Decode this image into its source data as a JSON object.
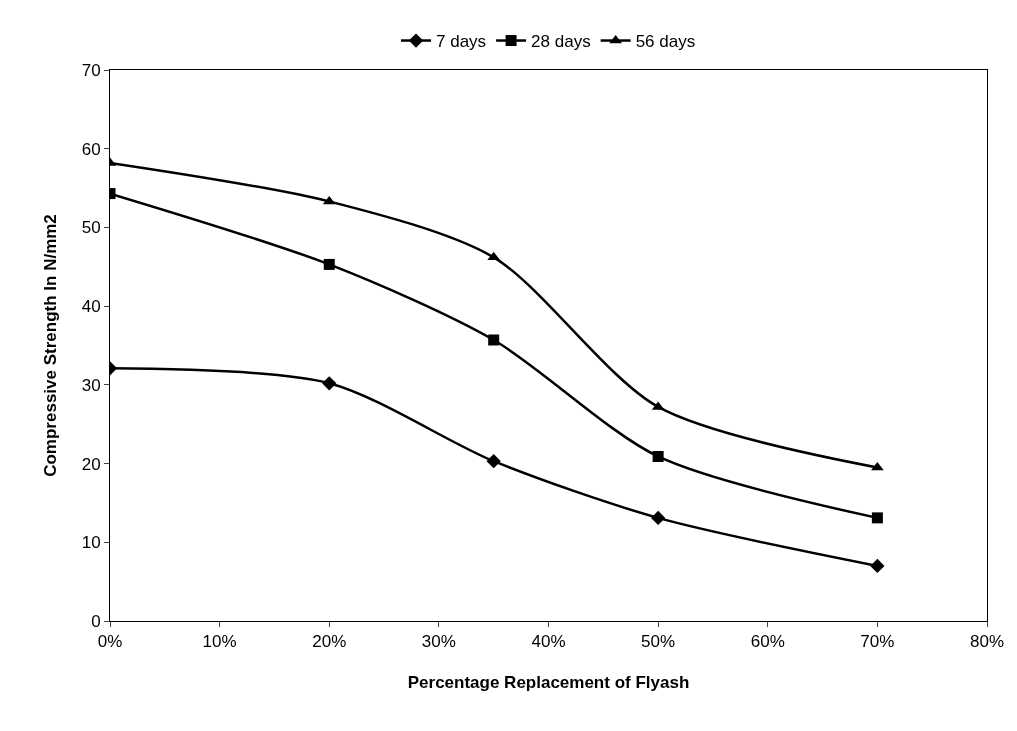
{
  "chart_data": {
    "type": "line",
    "xlabel": "Percentage Replacement of Flyash",
    "ylabel": "Compressive Strength In N/mm2",
    "x": [
      0,
      20,
      35,
      50,
      70
    ],
    "series": [
      {
        "name": "7 days",
        "color": "#000000",
        "marker": "diamond",
        "values": [
          32.1,
          30.2,
          20.3,
          13.1,
          7.0
        ]
      },
      {
        "name": "28 days",
        "color": "#000000",
        "marker": "square",
        "values": [
          54.3,
          45.3,
          35.7,
          20.9,
          13.1
        ]
      },
      {
        "name": "56 days",
        "color": "#000000",
        "marker": "triangle",
        "values": [
          58.2,
          53.3,
          46.2,
          27.2,
          19.5
        ]
      }
    ],
    "xlim": [
      0,
      80
    ],
    "xticks": [
      {
        "value": 0,
        "label": "0%"
      },
      {
        "value": 10,
        "label": "10%"
      },
      {
        "value": 20,
        "label": "20%"
      },
      {
        "value": 30,
        "label": "30%"
      },
      {
        "value": 40,
        "label": "40%"
      },
      {
        "value": 50,
        "label": "50%"
      },
      {
        "value": 60,
        "label": "60%"
      },
      {
        "value": 70,
        "label": "70%"
      },
      {
        "value": 80,
        "label": "80%"
      }
    ],
    "ylim": [
      0,
      70
    ],
    "yticks": [
      0,
      10,
      20,
      30,
      40,
      50,
      60,
      70
    ],
    "grid": false,
    "legend": "top",
    "line_style": "solid"
  }
}
